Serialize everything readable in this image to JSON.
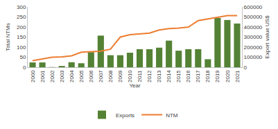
{
  "chart_data": {
    "type": "bar",
    "x_label": "Year",
    "y_label": "Total NTMs",
    "y2_label": "Export value US$",
    "categories": [
      "2000",
      "2001",
      "2002",
      "2003",
      "2004",
      "2005",
      "2006",
      "2007",
      "2008",
      "2009",
      "2010",
      "2011",
      "2012",
      "2013",
      "2014",
      "2015",
      "2016",
      "2017",
      "2018",
      "2019",
      "2020",
      "2021"
    ],
    "series": [
      {
        "name": "Exports",
        "type": "bar",
        "axis": "y2",
        "color": "#548235",
        "values": [
          48000,
          48000,
          2000,
          13000,
          50000,
          40000,
          150000,
          315000,
          120000,
          120000,
          145000,
          180000,
          180000,
          195000,
          265000,
          165000,
          180000,
          180000,
          80000,
          490000,
          470000,
          435000
        ]
      },
      {
        "name": "NTM",
        "type": "line",
        "color": "#ED7D31",
        "values": [
          33,
          42,
          50,
          52,
          57,
          75,
          77,
          80,
          90,
          150,
          162,
          167,
          170,
          185,
          192,
          195,
          200,
          232,
          240,
          250,
          257,
          257
        ]
      }
    ],
    "ylim": [
      0,
      300
    ],
    "yticks": [
      0,
      50,
      100,
      150,
      200,
      250,
      300
    ],
    "y2lim": [
      0,
      600000
    ],
    "y2ticks": [
      0,
      100000,
      200000,
      300000,
      400000,
      500000,
      600000
    ],
    "grid": false,
    "legend": "bottom"
  }
}
